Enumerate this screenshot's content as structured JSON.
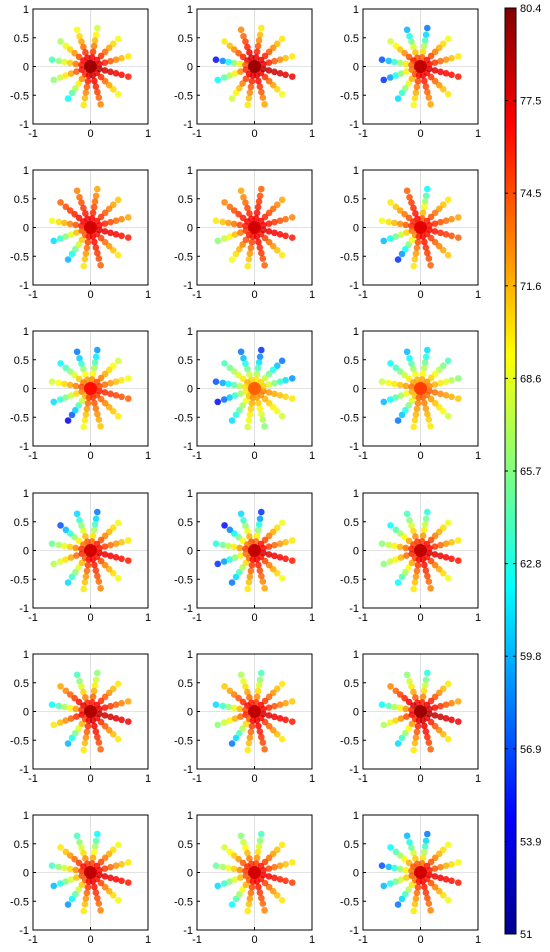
{
  "chart_data": {
    "type": "scatter",
    "layout": {
      "rows": 6,
      "cols": 3
    },
    "xlim": [
      -1,
      1
    ],
    "ylim": [
      -1,
      1
    ],
    "x_ticks": [
      "-1",
      "0",
      "1"
    ],
    "y_ticks": [
      "1",
      "0.5",
      "0",
      "-0.5",
      "-1"
    ],
    "grid": "zero-lines",
    "colorbar": {
      "position": "right",
      "min": 51,
      "max": 80.4,
      "ticks": [
        "80.4",
        "77.5",
        "74.5",
        "71.6",
        "68.6",
        "65.7",
        "62.8",
        "59.8",
        "56.9",
        "53.9",
        "51"
      ],
      "colormap": [
        "#00008f",
        "#0000ff",
        "#0080ff",
        "#00ffff",
        "#80ff80",
        "#ffff00",
        "#ff8000",
        "#ff0000",
        "#800000"
      ]
    },
    "spokes": {
      "count": 12,
      "points_per_spoke": 7,
      "angles_deg": [
        80,
        110,
        140,
        170,
        200,
        235,
        260,
        285,
        315,
        345,
        15,
        45
      ],
      "radii": [
        0.06,
        0.16,
        0.26,
        0.36,
        0.46,
        0.56,
        0.68
      ]
    },
    "panels": [
      {
        "center": 79.5,
        "tips": [
          68,
          69,
          67,
          64,
          66,
          62,
          70,
          73,
          69,
          76,
          70,
          69
        ]
      },
      {
        "center": 79.5,
        "tips": [
          70,
          73,
          70,
          55,
          62,
          68,
          70,
          72,
          69,
          77,
          70,
          70
        ]
      },
      {
        "center": 78.5,
        "tips": [
          58,
          60,
          68,
          57,
          56,
          61,
          69,
          72,
          70,
          76,
          70,
          69
        ]
      },
      {
        "center": 78.0,
        "tips": [
          72,
          73,
          74,
          69,
          61,
          60,
          70,
          74,
          70,
          76,
          72,
          71
        ]
      },
      {
        "center": 78.0,
        "tips": [
          74,
          72,
          73,
          70,
          66,
          69,
          70,
          74,
          70,
          76,
          73,
          72
        ]
      },
      {
        "center": 77.5,
        "tips": [
          62,
          74,
          70,
          69,
          60,
          56,
          70,
          74,
          71,
          74,
          72,
          70
        ]
      },
      {
        "center": 76.5,
        "tips": [
          59,
          58,
          62,
          68,
          61,
          54,
          69,
          71,
          70,
          74,
          69,
          68
        ]
      },
      {
        "center": 74.0,
        "tips": [
          56,
          58,
          64,
          57,
          55,
          61,
          68,
          66,
          68,
          70,
          59,
          58
        ]
      },
      {
        "center": 75.0,
        "tips": [
          61,
          60,
          62,
          68,
          60,
          58,
          70,
          70,
          68,
          71,
          66,
          64
        ]
      },
      {
        "center": 78.0,
        "tips": [
          58,
          61,
          57,
          65,
          67,
          61,
          70,
          73,
          69,
          76,
          70,
          69
        ]
      },
      {
        "center": 78.5,
        "tips": [
          56,
          61,
          55,
          63,
          56,
          58,
          70,
          72,
          69,
          76,
          70,
          69
        ]
      },
      {
        "center": 78.5,
        "tips": [
          63,
          64,
          62,
          66,
          66,
          62,
          70,
          73,
          69,
          76,
          70,
          69
        ]
      },
      {
        "center": 79.0,
        "tips": [
          66,
          64,
          72,
          62,
          70,
          60,
          70,
          74,
          70,
          77,
          72,
          70
        ]
      },
      {
        "center": 78.5,
        "tips": [
          64,
          67,
          71,
          61,
          66,
          58,
          70,
          74,
          70,
          76,
          71,
          70
        ]
      },
      {
        "center": 79.5,
        "tips": [
          63,
          66,
          73,
          62,
          67,
          61,
          70,
          74,
          70,
          77,
          72,
          70
        ]
      },
      {
        "center": 78.5,
        "tips": [
          62,
          64,
          70,
          64,
          60,
          59,
          70,
          73,
          69,
          76,
          70,
          69
        ]
      },
      {
        "center": 78.0,
        "tips": [
          64,
          66,
          68,
          65,
          61,
          62,
          70,
          73,
          70,
          75,
          70,
          70
        ]
      },
      {
        "center": 78.0,
        "tips": [
          58,
          60,
          62,
          57,
          60,
          58,
          70,
          73,
          69,
          76,
          69,
          69
        ]
      }
    ]
  }
}
